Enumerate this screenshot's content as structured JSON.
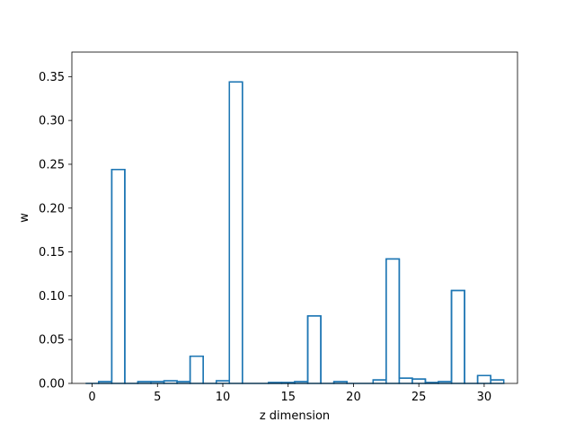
{
  "chart_data": {
    "type": "bar",
    "style": "step-outline histogram",
    "xlabel": "z dimension",
    "ylabel": "w",
    "xlim": [
      -1.55,
      32.55
    ],
    "ylim": [
      0,
      0.378
    ],
    "xticks": [
      0,
      5,
      10,
      15,
      20,
      25,
      30
    ],
    "yticks": [
      0.0,
      0.05,
      0.1,
      0.15,
      0.2,
      0.25,
      0.3,
      0.35
    ],
    "xtick_labels": [
      "0",
      "5",
      "10",
      "15",
      "20",
      "25",
      "30"
    ],
    "ytick_labels": [
      "0.00",
      "0.05",
      "0.10",
      "0.15",
      "0.20",
      "0.25",
      "0.30",
      "0.35"
    ],
    "grid": false,
    "line_color": "#1f77b4",
    "x": [
      0,
      1,
      2,
      3,
      4,
      5,
      6,
      7,
      8,
      9,
      10,
      11,
      12,
      13,
      14,
      15,
      16,
      17,
      18,
      19,
      20,
      21,
      22,
      23,
      24,
      25,
      26,
      27,
      28,
      29,
      30,
      31
    ],
    "values": [
      0.0,
      0.002,
      0.244,
      0.0,
      0.002,
      0.002,
      0.003,
      0.002,
      0.031,
      0.0,
      0.003,
      0.344,
      0.0,
      0.0,
      0.001,
      0.001,
      0.002,
      0.077,
      0.0,
      0.002,
      0.0,
      0.0,
      0.004,
      0.142,
      0.006,
      0.005,
      0.001,
      0.002,
      0.106,
      0.0,
      0.009,
      0.004
    ]
  }
}
